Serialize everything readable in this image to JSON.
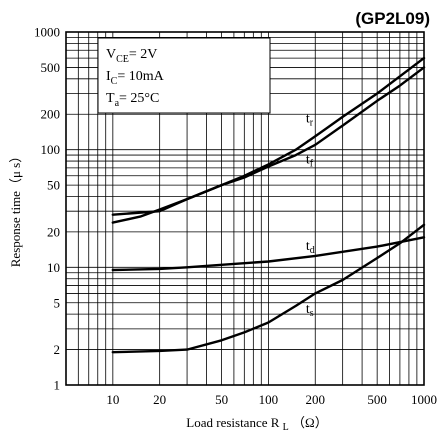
{
  "part_number": "(GP2L09)",
  "conditions": [
    {
      "main": "V",
      "sub": "CE",
      "rest": "= 2V"
    },
    {
      "main": "I",
      "sub": "C",
      "rest": "= 10mA"
    },
    {
      "main": "T",
      "sub": "a",
      "rest": "= 25°C"
    }
  ],
  "chart_data": {
    "type": "line",
    "title": "",
    "xlabel_main": "Load resistance R",
    "xlabel_sub": "L",
    "xlabel_unit": "（Ω）",
    "ylabel": "Response time（μ s）",
    "xscale": "log",
    "yscale": "log",
    "xlim": [
      5,
      1000
    ],
    "ylim": [
      1,
      1000
    ],
    "grid": true,
    "x_ticks": [
      {
        "value": 10,
        "label": "10"
      },
      {
        "value": 20,
        "label": "20"
      },
      {
        "value": 50,
        "label": "50"
      },
      {
        "value": 100,
        "label": "100"
      },
      {
        "value": 200,
        "label": "200"
      },
      {
        "value": 500,
        "label": "500"
      },
      {
        "value": 1000,
        "label": "1000"
      }
    ],
    "y_ticks": [
      {
        "value": 1,
        "label": "1"
      },
      {
        "value": 2,
        "label": "2"
      },
      {
        "value": 5,
        "label": "5"
      },
      {
        "value": 10,
        "label": "10"
      },
      {
        "value": 20,
        "label": "20"
      },
      {
        "value": 50,
        "label": "50"
      },
      {
        "value": 100,
        "label": "100"
      },
      {
        "value": 200,
        "label": "200"
      },
      {
        "value": 500,
        "label": "500"
      },
      {
        "value": 1000,
        "label": "1000"
      }
    ],
    "series": [
      {
        "name": "t",
        "sub": "r",
        "label_at": [
          150,
          170
        ],
        "x": [
          10,
          20,
          30,
          50,
          70,
          100,
          150,
          200,
          300,
          500,
          700,
          1000
        ],
        "y": [
          28,
          30,
          38,
          50,
          60,
          75,
          100,
          130,
          190,
          300,
          420,
          600
        ]
      },
      {
        "name": "t",
        "sub": "f",
        "label_at": [
          150,
          76
        ],
        "x": [
          10,
          15,
          20,
          30,
          50,
          70,
          100,
          150,
          200,
          300,
          500,
          700,
          1000
        ],
        "y": [
          24,
          27,
          31,
          38,
          50,
          58,
          72,
          90,
          110,
          160,
          260,
          350,
          500
        ]
      },
      {
        "name": "t",
        "sub": "d",
        "label_at": [
          150,
          14
        ],
        "x": [
          10,
          20,
          30,
          50,
          100,
          200,
          500,
          1000
        ],
        "y": [
          9.5,
          9.7,
          10,
          10.5,
          11.2,
          12.5,
          15,
          18
        ]
      },
      {
        "name": "t",
        "sub": "s",
        "label_at": [
          150,
          4.1
        ],
        "x": [
          10,
          20,
          30,
          50,
          70,
          100,
          150,
          200,
          300,
          500,
          700,
          1000
        ],
        "y": [
          1.9,
          1.95,
          2.0,
          2.4,
          2.8,
          3.4,
          4.7,
          6.0,
          7.8,
          12,
          16,
          23
        ]
      }
    ]
  }
}
